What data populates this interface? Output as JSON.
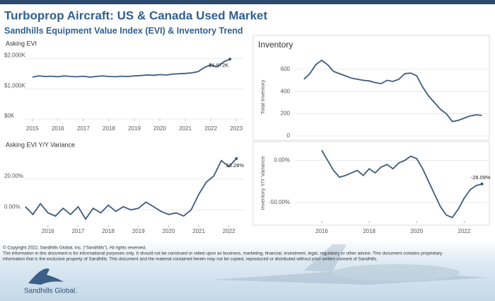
{
  "header": {
    "title": "Turboprop Aircraft:  US & Canada Used Market",
    "subtitle": "Sandhills Equipment Value Index (EVI) & Inventory Trend"
  },
  "chart_data": [
    {
      "type": "line",
      "title": "Asking EVI",
      "x": [
        2015,
        2015.25,
        2015.5,
        2015.75,
        2016,
        2016.25,
        2016.5,
        2016.75,
        2017,
        2017.25,
        2017.5,
        2017.75,
        2018,
        2018.25,
        2018.5,
        2018.75,
        2019,
        2019.25,
        2019.5,
        2019.75,
        2020,
        2020.25,
        2020.5,
        2020.75,
        2021,
        2021.25,
        2021.5,
        2021.75,
        2022,
        2022.25,
        2022.5,
        2022.75
      ],
      "series": [
        {
          "color": "#3e5b7e",
          "values": [
            1380,
            1420,
            1400,
            1410,
            1390,
            1420,
            1400,
            1390,
            1410,
            1380,
            1400,
            1420,
            1400,
            1390,
            1410,
            1400,
            1420,
            1430,
            1450,
            1440,
            1460,
            1450,
            1480,
            1490,
            1500,
            1520,
            1560,
            1700,
            1780,
            1720,
            1880,
            1972
          ],
          "value_labels": [
            null,
            null,
            null,
            null,
            null,
            null,
            null,
            null,
            null,
            null,
            null,
            null,
            null,
            null,
            null,
            null,
            null,
            null,
            null,
            null,
            null,
            null,
            null,
            null,
            null,
            null,
            null,
            null,
            null,
            null,
            null,
            "$1,972K"
          ]
        }
      ],
      "xlim": [
        2014.7,
        2023.3
      ],
      "xticks": [
        2015,
        2016,
        2017,
        2018,
        2019,
        2020,
        2021,
        2022,
        2023
      ],
      "ylim": [
        0,
        2100
      ],
      "yticks": [
        {
          "value": 0,
          "label": "$0K"
        },
        {
          "value": 1000,
          "label": "$1,000K"
        },
        {
          "value": 2000,
          "label": "$2,000K"
        }
      ],
      "grid": true
    },
    {
      "type": "line",
      "title": "Asking EVI Y/Y Variance",
      "x": [
        2015.25,
        2015.5,
        2015.75,
        2016,
        2016.25,
        2016.5,
        2016.75,
        2017,
        2017.25,
        2017.5,
        2017.75,
        2018,
        2018.25,
        2018.5,
        2018.75,
        2019,
        2019.25,
        2019.5,
        2019.75,
        2020,
        2020.25,
        2020.5,
        2020.75,
        2021,
        2021.25,
        2021.5,
        2021.75,
        2022,
        2022.25
      ],
      "series": [
        {
          "color": "#3e5b7e",
          "values": [
            2,
            -3,
            4,
            -2,
            -4,
            1,
            -3,
            2,
            -6,
            1,
            -2,
            3,
            -1,
            2,
            0,
            1,
            5,
            2,
            -1,
            -3,
            -2,
            -4,
            0,
            10,
            18,
            22,
            32,
            28,
            33.28
          ],
          "value_labels": [
            null,
            null,
            null,
            null,
            null,
            null,
            null,
            null,
            null,
            null,
            null,
            null,
            null,
            null,
            null,
            null,
            null,
            null,
            null,
            null,
            null,
            null,
            null,
            null,
            null,
            null,
            null,
            null,
            "33.28%"
          ]
        }
      ],
      "xlim": [
        2015.23,
        2022.5
      ],
      "xticks": [
        2016,
        2017,
        2018,
        2019,
        2020,
        2021,
        2022
      ],
      "ylim": [
        -10,
        36
      ],
      "yticks": [
        {
          "value": 0,
          "label": "0.00%"
        },
        {
          "value": 20,
          "label": "20.00%"
        }
      ],
      "grid": true
    },
    {
      "type": "line",
      "title": "Inventory",
      "ylabel": "Total Inventory",
      "x": [
        2015.25,
        2015.5,
        2015.75,
        2016,
        2016.25,
        2016.5,
        2016.75,
        2017,
        2017.25,
        2017.5,
        2017.75,
        2018,
        2018.25,
        2018.5,
        2018.75,
        2019,
        2019.25,
        2019.5,
        2019.75,
        2020,
        2020.25,
        2020.5,
        2020.75,
        2021,
        2021.25,
        2021.5,
        2021.75,
        2022,
        2022.25,
        2022.5,
        2022.75
      ],
      "series": [
        {
          "color": "#3e5b7e",
          "values": [
            510,
            560,
            640,
            680,
            640,
            580,
            560,
            540,
            520,
            510,
            500,
            495,
            480,
            470,
            500,
            490,
            510,
            560,
            565,
            540,
            440,
            360,
            300,
            240,
            200,
            130,
            140,
            160,
            180,
            190,
            185
          ]
        }
      ],
      "xlim": [
        2014.9,
        2023
      ],
      "ylim": [
        0,
        700
      ],
      "yticks": [
        0,
        200,
        400,
        600
      ],
      "grid": true
    },
    {
      "type": "line",
      "ylabel": "Inventory Y/Y Variance",
      "x": [
        2016,
        2016.25,
        2016.5,
        2016.75,
        2017,
        2017.25,
        2017.5,
        2017.75,
        2018,
        2018.25,
        2018.5,
        2018.75,
        2019,
        2019.25,
        2019.5,
        2019.75,
        2020,
        2020.25,
        2020.5,
        2020.75,
        2021,
        2021.25,
        2021.5,
        2021.75,
        2022,
        2022.25,
        2022.5,
        2022.75
      ],
      "series": [
        {
          "color": "#3e5b7e",
          "values": [
            12,
            0,
            -12,
            -20,
            -18,
            -15,
            -12,
            -18,
            -10,
            -15,
            -8,
            -5,
            -10,
            -3,
            0,
            5,
            2,
            -10,
            -25,
            -40,
            -55,
            -65,
            -68,
            -58,
            -45,
            -35,
            -30,
            -28.09
          ],
          "value_labels": [
            null,
            null,
            null,
            null,
            null,
            null,
            null,
            null,
            null,
            null,
            null,
            null,
            null,
            null,
            null,
            null,
            null,
            null,
            null,
            null,
            null,
            null,
            null,
            null,
            null,
            null,
            null,
            "-28.09%"
          ]
        }
      ],
      "xlim": [
        2014.9,
        2023
      ],
      "xticks": [
        2016,
        2018,
        2020,
        2022
      ],
      "ylim": [
        -72,
        18
      ],
      "yticks": [
        {
          "value": -50,
          "label": "-50.00%"
        },
        {
          "value": 0,
          "label": "0.00%"
        }
      ],
      "grid": true
    }
  ],
  "footer": {
    "lines": [
      "© Copyright 2022, Sandhills Global, Inc. (“Sandhills”). All rights reserved.",
      "The information in this document is for informational purposes only.  It should not be construed or relied upon as business, marketing, financial, investment, legal, regulatory or other advice. This document contains proprietary",
      "information that is the exclusive property of Sandhills. This document and the material contained herein may not be copied, reproduced or distributed without prior written consent of Sandhills."
    ],
    "logo": "Sandhills Global."
  }
}
